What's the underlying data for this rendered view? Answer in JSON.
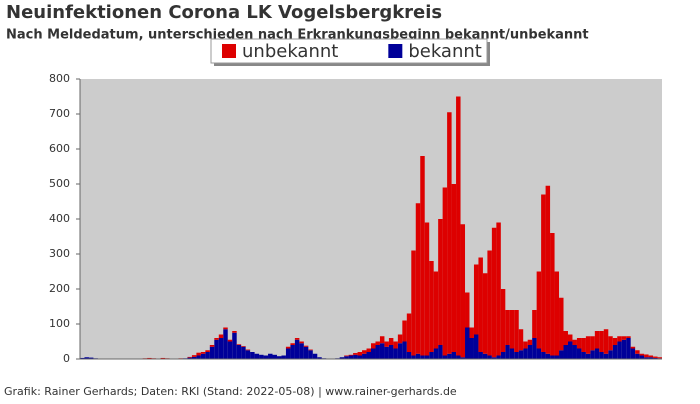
{
  "chart_data": {
    "type": "stacked_bar",
    "title": "Neuinfektionen Corona LK Vogelsbergkreis",
    "subtitle": "Nach Meldedatum, unterschieden nach Erkrankungsbeginn bekannt/unbekannt",
    "footer": "Grafik: Rainer Gerhards; Daten: RKI (Stand: 2022-05-08) | www.rainer-gerhards.de",
    "categories": [
      null,
      null,
      null,
      null,
      null,
      null,
      null,
      null,
      null,
      null,
      null,
      null,
      null,
      null,
      null,
      null,
      null,
      null,
      null,
      null,
      null,
      null,
      null,
      null,
      null,
      null,
      null,
      null,
      null,
      null,
      null,
      null,
      null,
      null,
      null,
      null,
      null,
      null,
      null,
      null,
      null,
      null,
      null,
      null,
      null,
      null,
      null,
      null,
      null,
      null,
      null,
      null,
      null,
      null,
      null,
      null,
      null,
      null,
      null,
      null,
      null,
      null,
      null,
      null,
      null,
      null,
      null,
      null,
      null,
      null,
      null,
      null,
      null,
      null,
      null,
      null,
      null,
      null,
      null,
      null,
      null,
      null,
      null,
      null,
      null,
      null,
      null,
      null,
      null,
      null,
      null,
      null,
      null,
      null,
      null,
      null,
      null,
      null,
      null,
      null,
      null,
      null,
      null,
      null,
      null,
      null,
      null,
      null,
      null,
      null,
      null,
      null,
      null,
      null,
      null,
      null,
      null,
      null,
      null,
      null,
      null,
      null,
      null,
      null,
      null,
      null,
      null,
      null,
      null,
      null
    ],
    "series": [
      {
        "name": "unbekannt",
        "color": "#dd0000",
        "values": [
          0,
          0,
          0,
          0,
          0,
          0,
          0,
          0,
          0,
          0,
          0,
          0,
          0,
          0,
          2,
          3,
          2,
          1,
          3,
          2,
          0,
          1,
          2,
          0,
          2,
          5,
          8,
          5,
          5,
          5,
          5,
          10,
          5,
          5,
          5,
          2,
          2,
          2,
          0,
          0,
          0,
          0,
          0,
          0,
          0,
          0,
          5,
          5,
          5,
          5,
          3,
          2,
          0,
          0,
          0,
          0,
          0,
          0,
          0,
          2,
          2,
          5,
          10,
          10,
          10,
          15,
          10,
          20,
          15,
          20,
          20,
          25,
          60,
          110,
          300,
          430,
          570,
          380,
          260,
          220,
          360,
          480,
          690,
          480,
          740,
          380,
          100,
          30,
          200,
          270,
          230,
          300,
          370,
          380,
          180,
          100,
          110,
          120,
          60,
          20,
          15,
          80,
          220,
          450,
          480,
          350,
          240,
          150,
          40,
          20,
          15,
          30,
          40,
          50,
          40,
          50,
          60,
          70,
          40,
          20,
          15,
          10,
          5,
          5,
          10,
          5,
          8,
          5,
          4,
          3
        ]
      },
      {
        "name": "bekannt",
        "color": "#000099",
        "values": [
          3,
          5,
          4,
          2,
          1,
          0,
          0,
          0,
          0,
          0,
          0,
          0,
          0,
          0,
          0,
          0,
          0,
          0,
          0,
          0,
          0,
          0,
          0,
          2,
          4,
          6,
          10,
          15,
          20,
          35,
          55,
          60,
          85,
          50,
          75,
          40,
          35,
          25,
          20,
          15,
          12,
          10,
          15,
          12,
          8,
          10,
          30,
          40,
          55,
          45,
          35,
          25,
          15,
          5,
          2,
          1,
          1,
          2,
          5,
          8,
          10,
          12,
          10,
          15,
          20,
          30,
          40,
          45,
          35,
          40,
          30,
          45,
          50,
          20,
          10,
          15,
          10,
          10,
          20,
          30,
          40,
          10,
          15,
          20,
          10,
          5,
          90,
          60,
          70,
          20,
          15,
          10,
          5,
          10,
          20,
          40,
          30,
          20,
          25,
          30,
          40,
          60,
          30,
          20,
          15,
          10,
          10,
          25,
          40,
          50,
          40,
          30,
          20,
          15,
          25,
          30,
          20,
          15,
          25,
          40,
          50,
          55,
          60,
          30,
          15,
          10,
          5,
          5,
          3,
          2
        ]
      }
    ],
    "ylim": [
      0,
      800
    ],
    "yticks": [
      0,
      100,
      200,
      300,
      400,
      500,
      600,
      700,
      800
    ],
    "grid": false
  }
}
